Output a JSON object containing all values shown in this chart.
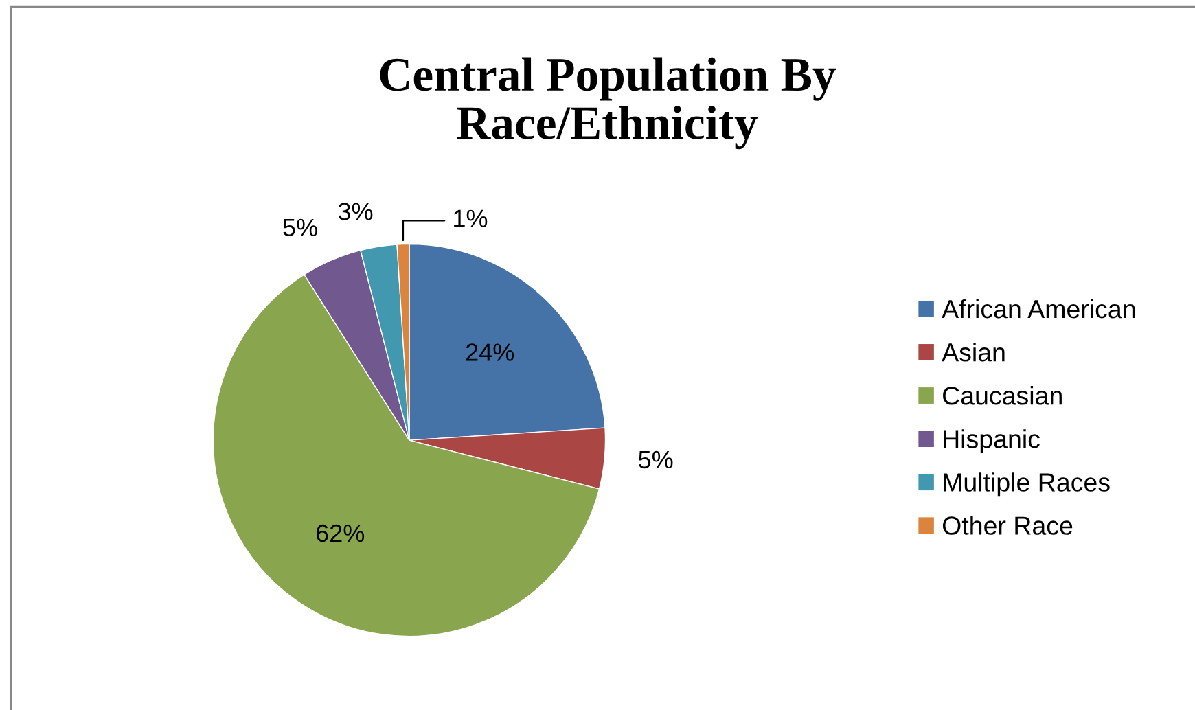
{
  "chart_data": {
    "type": "pie",
    "title": "Central Population By\nRace/Ethnicity",
    "categories": [
      "African American",
      "Asian",
      "Caucasian",
      "Hispanic",
      "Multiple Races",
      "Other Race"
    ],
    "values": [
      24,
      5,
      62,
      5,
      3,
      1
    ],
    "colors": [
      "#4572a7",
      "#aa4643",
      "#89a54e",
      "#71588f",
      "#4198af",
      "#db843d"
    ],
    "value_labels": [
      "24%",
      "5%",
      "62%",
      "5%",
      "3%",
      "1%"
    ],
    "legend": "right"
  }
}
